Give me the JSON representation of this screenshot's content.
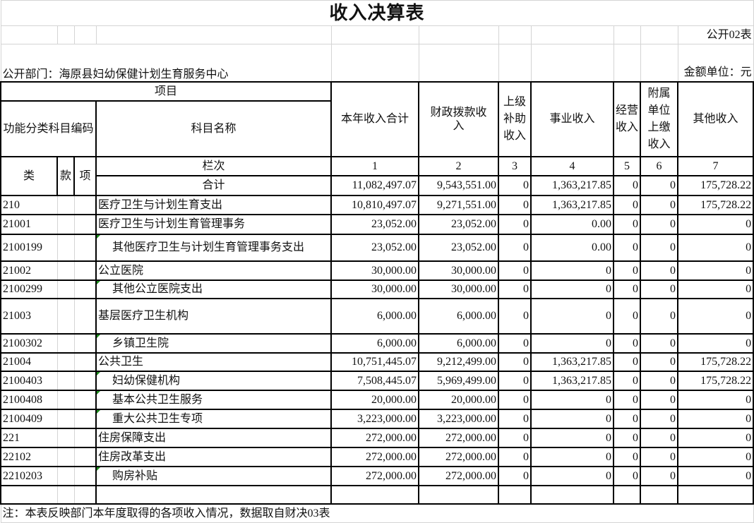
{
  "title": "收入决算表",
  "form_code": "公开02表",
  "unit_label": "金额单位：元",
  "department": "公开部门：海原县妇幼保健计划生育服务中心",
  "header": {
    "project": "项目",
    "code": "功能分类科目编码",
    "name": "科目名称",
    "col_lei": "类",
    "col_kuan": "款",
    "col_xiang": "项",
    "lanci": "栏次",
    "total_label": "合计",
    "columns": [
      "本年收入合计",
      "财政拨款收入",
      "上级补助收入",
      "事业收入",
      "经营收入",
      "附属单位上缴收入",
      "其他收入"
    ],
    "column_numbers": [
      "1",
      "2",
      "3",
      "4",
      "5",
      "6",
      "7"
    ]
  },
  "total": [
    "11,082,497.07",
    "9,543,551.00",
    "0",
    "1,363,217.85",
    "0",
    "0",
    "175,728.22"
  ],
  "rows": [
    {
      "code": "210",
      "name": "医疗卫生与计划生育支出",
      "indent": false,
      "values": [
        "10,810,497.07",
        "9,271,551.00",
        "0",
        "1,363,217.85",
        "0",
        "0",
        "175,728.22"
      ]
    },
    {
      "code": "21001",
      "name": "医疗卫生与计划生育管理事务",
      "indent": false,
      "values": [
        "23,052.00",
        "23,052.00",
        "0",
        "0.00",
        "0",
        "0",
        "0"
      ]
    },
    {
      "code": "2100199",
      "name": "其他医疗卫生与计划生育管理事务支出",
      "indent": true,
      "values": [
        "23,052.00",
        "23,052.00",
        "0",
        "0.00",
        "0",
        "0",
        "0"
      ]
    },
    {
      "code": "21002",
      "name": "公立医院",
      "indent": false,
      "values": [
        "30,000.00",
        "30,000.00",
        "0",
        "0",
        "0",
        "0",
        "0"
      ]
    },
    {
      "code": "2100299",
      "name": "其他公立医院支出",
      "indent": true,
      "values": [
        "30,000.00",
        "30,000.00",
        "0",
        "0",
        "0",
        "0",
        "0"
      ]
    },
    {
      "code": "21003",
      "name": "基层医疗卫生机构",
      "indent": false,
      "values": [
        "6,000.00",
        "6,000.00",
        "0",
        "0",
        "0",
        "0",
        "0"
      ]
    },
    {
      "code": "2100302",
      "name": "乡镇卫生院",
      "indent": true,
      "values": [
        "6,000.00",
        "6,000.00",
        "0",
        "0",
        "0",
        "0",
        "0"
      ]
    },
    {
      "code": "21004",
      "name": "公共卫生",
      "indent": false,
      "values": [
        "10,751,445.07",
        "9,212,499.00",
        "0",
        "1,363,217.85",
        "0",
        "0",
        "175,728.22"
      ]
    },
    {
      "code": "2100403",
      "name": "妇幼保健机构",
      "indent": true,
      "values": [
        "7,508,445.07",
        "5,969,499.00",
        "0",
        "1,363,217.85",
        "0",
        "0",
        "175,728.22"
      ]
    },
    {
      "code": "2100408",
      "name": "基本公共卫生服务",
      "indent": true,
      "values": [
        "20,000.00",
        "20,000.00",
        "0",
        "0",
        "0",
        "0",
        "0"
      ]
    },
    {
      "code": "2100409",
      "name": "重大公共卫生专项",
      "indent": true,
      "values": [
        "3,223,000.00",
        "3,223,000.00",
        "0",
        "0",
        "0",
        "0",
        "0"
      ]
    },
    {
      "code": "221",
      "name": "住房保障支出",
      "indent": false,
      "values": [
        "272,000.00",
        "272,000.00",
        "0",
        "0",
        "0",
        "0",
        "0"
      ]
    },
    {
      "code": "22102",
      "name": "住房改革支出",
      "indent": false,
      "values": [
        "272,000.00",
        "272,000.00",
        "0",
        "0",
        "0",
        "0",
        "0"
      ]
    },
    {
      "code": "2210203",
      "name": "购房补贴",
      "indent": true,
      "values": [
        "272,000.00",
        "272,000.00",
        "0",
        "0",
        "0",
        "0",
        "0"
      ]
    }
  ],
  "note": "注：本表反映部门本年度取得的各项收入情况，数据取自财决03表",
  "colors": {
    "border": "#000000",
    "grid": "#d4d4d4",
    "comment_marker": "#1a8a1a"
  }
}
